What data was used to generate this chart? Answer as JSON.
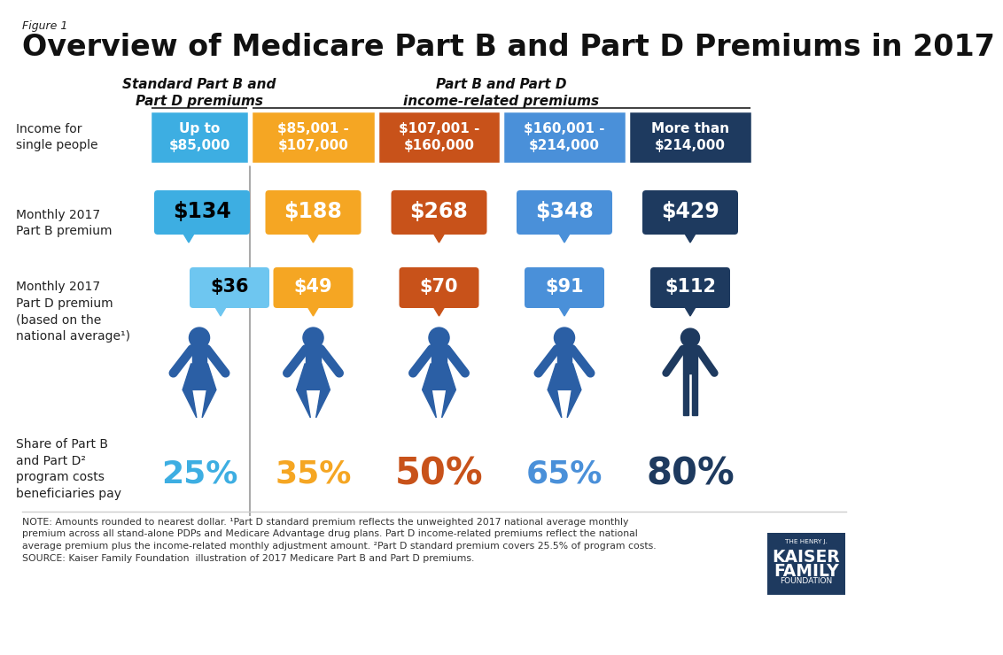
{
  "figure_label": "Figure 1",
  "title": "Overview of Medicare Part B and Part D Premiums in 2017",
  "col_header_left": "Standard Part B and\nPart D premiums",
  "col_header_right": "Part B and Part D\nincome-related premiums",
  "income_labels": [
    "Up to\n$85,000",
    "$85,001 -\n$107,000",
    "$107,001 -\n$160,000",
    "$160,001 -\n$214,000",
    "More than\n$214,000"
  ],
  "income_colors": [
    "#3daee2",
    "#f5a623",
    "#c8521a",
    "#4a90d9",
    "#1e3a5f"
  ],
  "part_b_values": [
    "$134",
    "$188",
    "$268",
    "$348",
    "$429"
  ],
  "part_b_colors": [
    "#3daee2",
    "#f5a623",
    "#c8521a",
    "#4a90d9",
    "#1e3a5f"
  ],
  "part_d_values": [
    "$36",
    "$49",
    "$70",
    "$91",
    "$112"
  ],
  "part_d_colors": [
    "#6ec6f0",
    "#f5a623",
    "#c8521a",
    "#4a90d9",
    "#1e3a5f"
  ],
  "share_values": [
    "25%",
    "35%",
    "50%",
    "65%",
    "80%"
  ],
  "share_colors": [
    "#3daee2",
    "#f5a623",
    "#c8521a",
    "#4a90d9",
    "#1e3a5f"
  ],
  "person_colors": [
    "#2b5fa5",
    "#2b5fa5",
    "#2b5fa5",
    "#2b5fa5",
    "#1e3a5f"
  ],
  "row_label_partb": "Monthly 2017\nPart B premium",
  "row_label_partd": "Monthly 2017\nPart D premium\n(based on the\nnational average¹)",
  "row_label_share": "Share of Part B\nand Part D²\nprogram costs\nbeneficiaries pay",
  "income_row_label": "Income for\nsingle people",
  "note_line1": "NOTE: Amounts rounded to nearest dollar. ¹Part D standard premium reflects the unweighted 2017 national average monthly",
  "note_line2": "premium across all stand-alone PDPs and Medicare Advantage drug plans. Part D income-related premiums reflect the national",
  "note_line3": "average premium plus the income-related monthly adjustment amount. ²Part D standard premium covers 25.5% of program costs.",
  "note_line4": "SOURCE: Kaiser Family Foundation  illustration of 2017 Medicare Part B and Part D premiums.",
  "bg_color": "#ffffff",
  "text_color": "#333333"
}
